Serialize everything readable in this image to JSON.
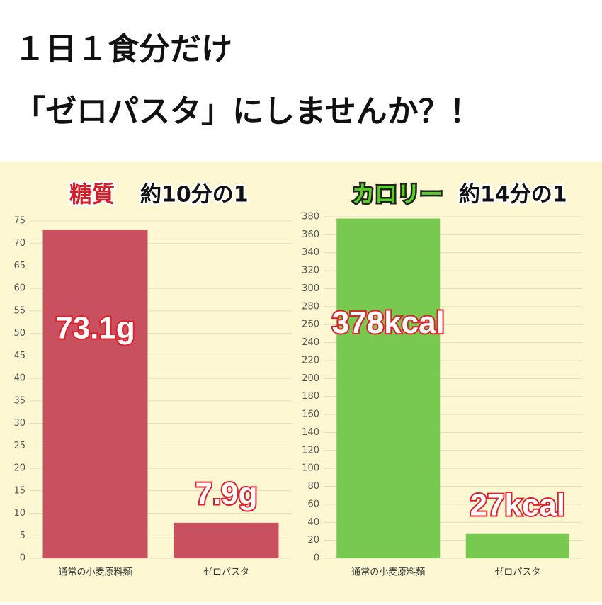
{
  "headline": [
    "１日１食分だけ",
    "「ゼロパスタ」にしませんか？！"
  ],
  "chart_data": [
    {
      "type": "bar",
      "title": "糖質",
      "subtitle": "約10分の1",
      "categories": [
        "通常の小麦原料麺",
        "ゼロパスタ"
      ],
      "values": [
        73.1,
        7.9
      ],
      "value_labels": [
        "73.1g",
        "7.9g"
      ],
      "color": "#c8505f",
      "ylim": [
        0,
        75
      ],
      "yticks": [
        0,
        5,
        10,
        15,
        20,
        25,
        30,
        35,
        40,
        45,
        50,
        55,
        60,
        65,
        70,
        75
      ],
      "grid": true
    },
    {
      "type": "bar",
      "title": "カロリー",
      "subtitle": "約14分の1",
      "categories": [
        "通常の小麦原料麺",
        "ゼロパスタ"
      ],
      "values": [
        378,
        27
      ],
      "value_labels": [
        "378kcal",
        "27kcal"
      ],
      "color": "#77c94f",
      "ylim": [
        0,
        380
      ],
      "yticks": [
        0,
        20,
        40,
        60,
        80,
        100,
        120,
        140,
        160,
        180,
        200,
        220,
        240,
        260,
        280,
        300,
        320,
        340,
        360,
        380
      ],
      "grid": true
    }
  ]
}
